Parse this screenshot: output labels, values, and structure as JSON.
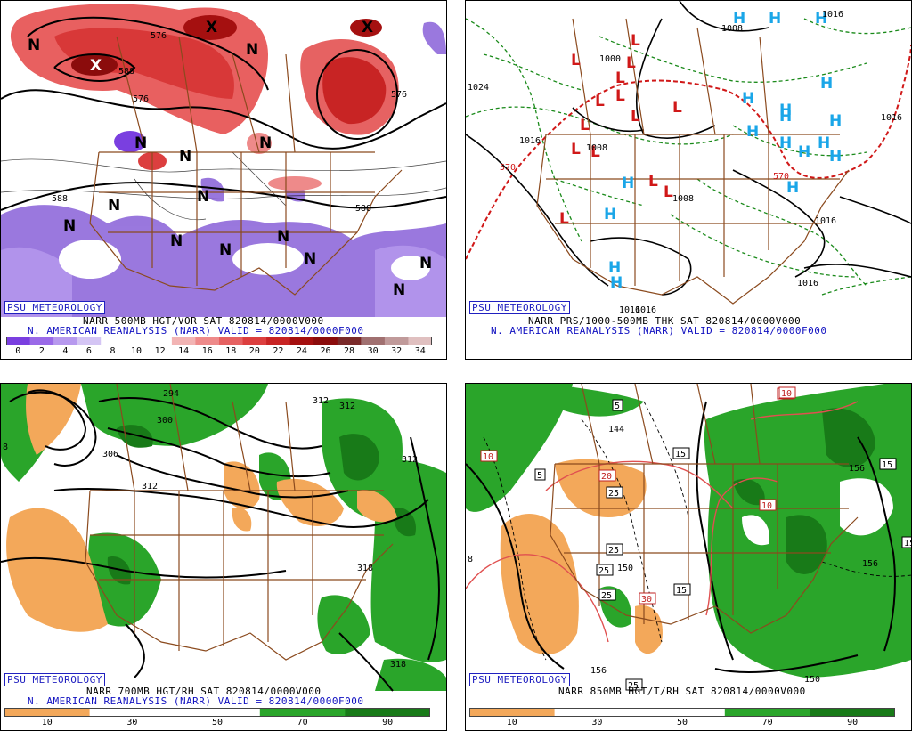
{
  "branding": "PSU METEOROLOGY",
  "panels": [
    {
      "id": "vor500",
      "title_line": "NARR 500MB HGT/VOR SAT 820814/0000V000",
      "valid_line": "N. AMERICAN REANALYSIS (NARR) VALID = 820814/0000F000",
      "colorbar": {
        "ticks": [
          "0",
          "2",
          "4",
          "6",
          "8",
          "10",
          "12",
          "14",
          "16",
          "18",
          "20",
          "22",
          "24",
          "26",
          "28",
          "30",
          "32",
          "34"
        ],
        "colors": [
          "#7a3fe0",
          "#9a6ae8",
          "#b799ee",
          "#d4c5f4",
          "#ffffff",
          "#ffffff",
          "#ffffff",
          "#f2b4b4",
          "#ee8a8a",
          "#e66262",
          "#dc3f3f",
          "#c82424",
          "#a51010",
          "#8b0c0c",
          "#7a2a2a",
          "#a07070",
          "#c09a9a",
          "#e0c0c0"
        ]
      },
      "contour_labels": [
        "588",
        "576",
        "588",
        "576",
        "588",
        "576"
      ],
      "symbols": [
        "N",
        "N",
        "N",
        "N",
        "N",
        "N",
        "N",
        "N",
        "N",
        "N",
        "N",
        "N",
        "N",
        "N",
        "X",
        "X",
        "X"
      ]
    },
    {
      "id": "prs",
      "title_line": "NARR PRS/1000-500MB THK SAT 820814/0000V000",
      "valid_line": "N. AMERICAN REANALYSIS (NARR) VALID = 820814/0000F000",
      "contour_labels": [
        "1000",
        "1016",
        "1008",
        "1016",
        "1016",
        "1024",
        "1016",
        "1008",
        "1008",
        "1016",
        "1016",
        "570",
        "570",
        "1016"
      ],
      "lows": 14,
      "highs": 18
    },
    {
      "id": "rh700",
      "title_line": "NARR 700MB HGT/RH SAT 820814/0000V000",
      "valid_line": "N. AMERICAN REANALYSIS (NARR) VALID = 820814/0000F000",
      "colorbar": {
        "ticks": [
          "10",
          "30",
          "50",
          "70",
          "90"
        ],
        "colors": [
          "#f3a85a",
          "#ffffff",
          "#ffffff",
          "#2aa52a",
          "#187a18"
        ]
      },
      "contour_labels": [
        "294",
        "300",
        "306",
        "312",
        "312",
        "312",
        "312",
        "318",
        "318",
        "8"
      ]
    },
    {
      "id": "t850",
      "title_line": "NARR 850MB HGT/T/RH SAT 820814/0000V000",
      "valid_line": "",
      "colorbar": {
        "ticks": [
          "10",
          "30",
          "50",
          "70",
          "90"
        ],
        "colors": [
          "#f3a85a",
          "#ffffff",
          "#ffffff",
          "#2aa52a",
          "#187a18"
        ]
      },
      "contour_labels": [
        "144",
        "150",
        "156",
        "156",
        "156",
        "150",
        "8"
      ],
      "temp_boxes": [
        "10",
        "5",
        "5",
        "15",
        "10",
        "20",
        "25",
        "25",
        "25",
        "25",
        "15",
        "25",
        "30",
        "10",
        "15",
        "15",
        "10"
      ]
    }
  ]
}
